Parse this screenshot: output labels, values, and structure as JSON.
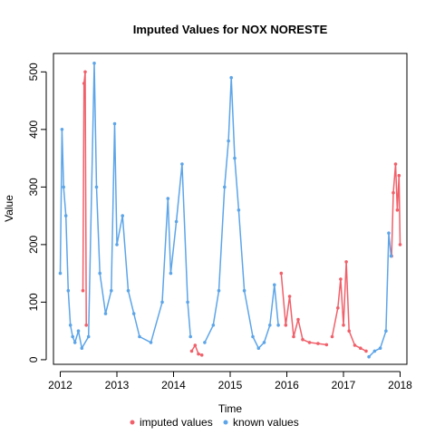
{
  "chart_data": {
    "type": "line",
    "title": "Imputed Values for  NOX NORESTE",
    "xlabel": "Time",
    "ylabel": "Value",
    "xlim": [
      2011.88,
      2018.12
    ],
    "ylim": [
      -8,
      532
    ],
    "x_ticks": [
      "2012",
      "2013",
      "2014",
      "2015",
      "2016",
      "2017",
      "2018"
    ],
    "y_ticks": [
      "0",
      "100",
      "200",
      "300",
      "400",
      "500"
    ],
    "legend_position": "bottom",
    "series": [
      {
        "name": "imputed values",
        "color": "#F0606A",
        "segments": [
          {
            "x": [
              2012.4,
              2012.42,
              2012.44,
              2012.46
            ],
            "y": [
              120,
              480,
              500,
              60
            ]
          },
          {
            "x": [
              2014.32,
              2014.38,
              2014.44,
              2014.5
            ],
            "y": [
              15,
              25,
              10,
              8
            ]
          },
          {
            "x": [
              2015.9,
              2015.98,
              2016.05,
              2016.12,
              2016.2,
              2016.28,
              2016.4,
              2016.55,
              2016.7
            ],
            "y": [
              150,
              60,
              110,
              40,
              70,
              35,
              30,
              28,
              26
            ]
          },
          {
            "x": [
              2016.8,
              2016.9,
              2016.95,
              2017.0,
              2017.05,
              2017.1,
              2017.2,
              2017.3,
              2017.4
            ],
            "y": [
              40,
              90,
              140,
              60,
              170,
              50,
              25,
              20,
              15
            ]
          },
          {
            "x": [
              2017.85,
              2017.88,
              2017.92,
              2017.95,
              2017.98,
              2018.0
            ],
            "y": [
              180,
              290,
              340,
              260,
              320,
              200
            ]
          }
        ]
      },
      {
        "name": "known values",
        "color": "#5DA5E8",
        "segments": [
          {
            "x": [
              2012.0,
              2012.03,
              2012.06,
              2012.1,
              2012.14,
              2012.18,
              2012.22,
              2012.26,
              2012.32,
              2012.38,
              2012.5,
              2012.6,
              2012.64,
              2012.7,
              2012.8,
              2012.9,
              2012.96,
              2013.0,
              2013.1,
              2013.2,
              2013.3,
              2013.4,
              2013.6,
              2013.8,
              2013.9,
              2013.95,
              2014.05,
              2014.15,
              2014.25,
              2014.3
            ],
            "y": [
              150,
              400,
              300,
              250,
              120,
              60,
              40,
              30,
              50,
              20,
              40,
              515,
              300,
              150,
              80,
              120,
              410,
              200,
              250,
              120,
              80,
              40,
              30,
              100,
              280,
              150,
              240,
              340,
              100,
              40
            ]
          },
          {
            "x": [
              2014.55,
              2014.7,
              2014.8,
              2014.9,
              2014.97,
              2015.02,
              2015.08,
              2015.15,
              2015.25,
              2015.4,
              2015.5,
              2015.6,
              2015.7,
              2015.78,
              2015.85
            ],
            "y": [
              30,
              60,
              120,
              300,
              380,
              490,
              350,
              260,
              120,
              40,
              20,
              30,
              60,
              130,
              60
            ]
          },
          {
            "x": [
              2017.45,
              2017.55,
              2017.65,
              2017.75,
              2017.8,
              2017.84
            ],
            "y": [
              5,
              15,
              20,
              50,
              220,
              180
            ]
          }
        ]
      }
    ]
  }
}
